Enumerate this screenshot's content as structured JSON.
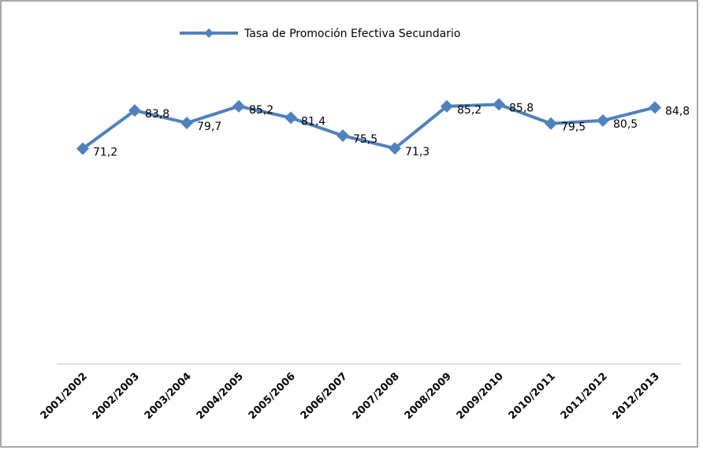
{
  "chart_data": {
    "type": "line",
    "categories": [
      "2001/2002",
      "2002/2003",
      "2003/2004",
      "2004/2005",
      "2005/2006",
      "2006/2007",
      "2007/2008",
      "2008/2009",
      "2009/2010",
      "2010/2011",
      "2011/2012",
      "2012/2013"
    ],
    "series": [
      {
        "name": "Tasa de Promoción Efectiva Secundario",
        "color": "#4f81bd",
        "values": [
          71.2,
          83.8,
          79.7,
          85.2,
          81.4,
          75.5,
          71.3,
          85.2,
          85.8,
          79.5,
          80.5,
          84.8
        ],
        "value_labels": [
          "71,2",
          "83,8",
          "79,7",
          "85,2",
          "81,4",
          "75,5",
          "71,3",
          "85,2",
          "85,8",
          "79,5",
          "80,5",
          "84,8"
        ]
      }
    ],
    "ylim": [
      0,
      100
    ],
    "legend": "top"
  }
}
